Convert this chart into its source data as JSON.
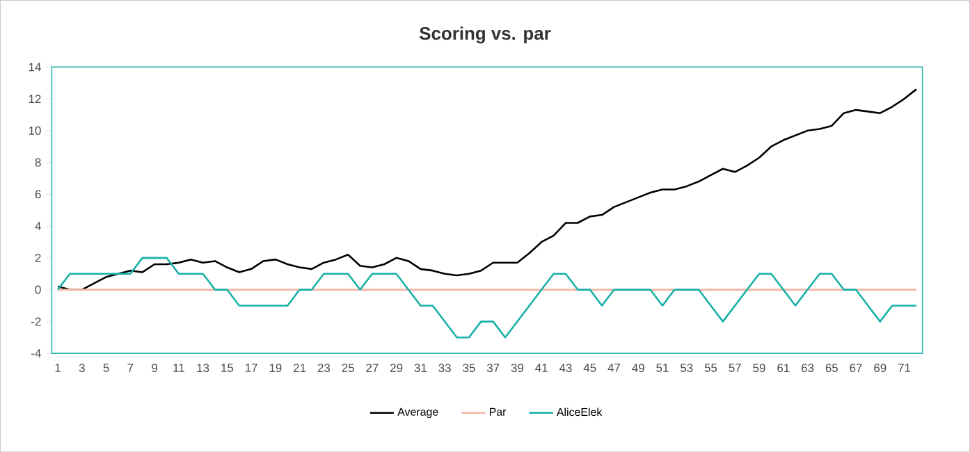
{
  "chart_data": {
    "type": "line",
    "title": "Scoring vs. par",
    "categories": [
      "1",
      null,
      "3",
      null,
      "5",
      null,
      "7",
      null,
      "9",
      null,
      "11",
      null,
      "13",
      null,
      "15",
      null,
      "17",
      null,
      "19",
      null,
      "21",
      null,
      "23",
      null,
      "25",
      null,
      "27",
      null,
      "29",
      null,
      "31",
      null,
      "33",
      null,
      "35",
      null,
      "37",
      null,
      "39",
      null,
      "41",
      null,
      "43",
      null,
      "45",
      null,
      "47",
      null,
      "49",
      null,
      "51",
      null,
      "53",
      null,
      "55",
      null,
      "57",
      null,
      "59",
      null,
      "61",
      null,
      "63",
      null,
      "65",
      null,
      "67",
      null,
      "69",
      null,
      "71",
      null
    ],
    "series": [
      {
        "name": "Average",
        "color": "#000000",
        "values": [
          0.2,
          0,
          0,
          0.4,
          0.8,
          1.0,
          1.2,
          1.1,
          1.6,
          1.6,
          1.7,
          1.9,
          1.7,
          1.8,
          1.4,
          1.1,
          1.3,
          1.8,
          1.9,
          1.6,
          1.4,
          1.3,
          1.7,
          1.9,
          2.2,
          1.5,
          1.4,
          1.6,
          2.0,
          1.8,
          1.3,
          1.2,
          1.0,
          0.9,
          1.0,
          1.2,
          1.7,
          1.7,
          1.7,
          2.3,
          3.0,
          3.4,
          4.2,
          4.2,
          4.6,
          4.7,
          5.2,
          5.5,
          5.8,
          6.1,
          6.3,
          6.3,
          6.5,
          6.8,
          7.2,
          7.6,
          7.4,
          7.8,
          8.3,
          9.0,
          9.4,
          9.7,
          10.0,
          10.1,
          10.3,
          11.1,
          11.3,
          11.2,
          11.1,
          11.5,
          12.0,
          12.6
        ]
      },
      {
        "name": "Par",
        "color": "#f4b6a8",
        "values": [
          0,
          0,
          0,
          0,
          0,
          0,
          0,
          0,
          0,
          0,
          0,
          0,
          0,
          0,
          0,
          0,
          0,
          0,
          0,
          0,
          0,
          0,
          0,
          0,
          0,
          0,
          0,
          0,
          0,
          0,
          0,
          0,
          0,
          0,
          0,
          0,
          0,
          0,
          0,
          0,
          0,
          0,
          0,
          0,
          0,
          0,
          0,
          0,
          0,
          0,
          0,
          0,
          0,
          0,
          0,
          0,
          0,
          0,
          0,
          0,
          0,
          0,
          0,
          0,
          0,
          0,
          0,
          0,
          0,
          0,
          0,
          0
        ]
      },
      {
        "name": "AliceElek",
        "color": "#17b0a7",
        "values": [
          0,
          1,
          1,
          1,
          1,
          1,
          1,
          2,
          2,
          2,
          1,
          1,
          1,
          0,
          0,
          -1,
          -1,
          -1,
          -1,
          -1,
          0,
          0,
          1,
          1,
          1,
          0,
          1,
          1,
          1,
          0,
          -1,
          -1,
          -2,
          -3,
          -3,
          -2,
          -2,
          -3,
          -2,
          -1,
          0,
          1,
          1,
          0,
          0,
          -1,
          0,
          0,
          0,
          0,
          -1,
          0,
          0,
          0,
          -1,
          -2,
          -1,
          0,
          1,
          1,
          0,
          -1,
          0,
          1,
          1,
          0,
          0,
          -1,
          -2,
          -1,
          -1,
          -1
        ]
      }
    ],
    "ylim": [
      -4,
      14
    ],
    "yticks": [
      -4,
      -2,
      0,
      2,
      4,
      6,
      8,
      10,
      12,
      14
    ],
    "legend": "bottom",
    "grid": false,
    "marker": "none",
    "line_style": "solid"
  }
}
